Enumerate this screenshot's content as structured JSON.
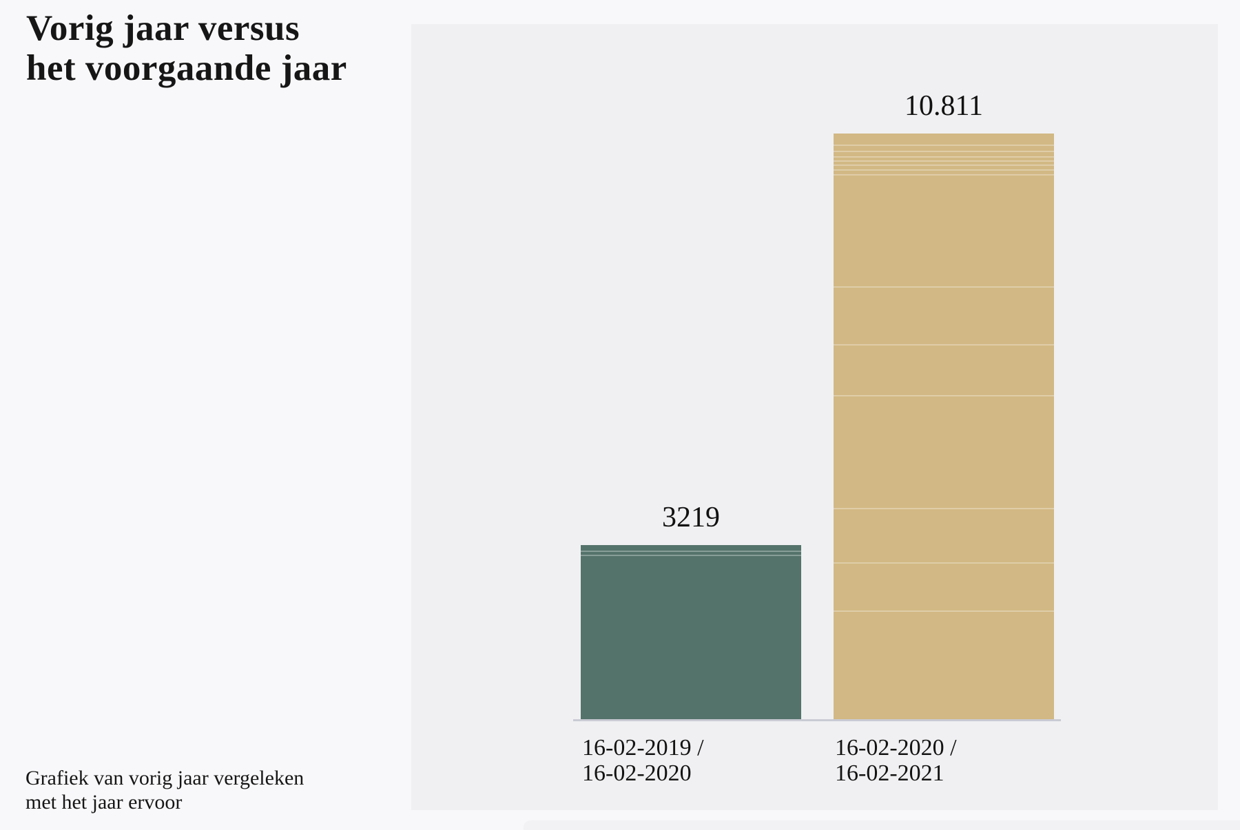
{
  "page": {
    "background_color": "#f8f8fa",
    "title_lines": [
      "Vorig jaar versus",
      "het voorgaande jaar"
    ],
    "caption_lines": [
      "Grafiek van vorig jaar vergeleken",
      "met het jaar ervoor"
    ],
    "text_color": "#151515"
  },
  "chart_data": {
    "type": "bar",
    "title": "Vorig jaar versus het voorgaande jaar",
    "subtitle": "Grafiek van vorig jaar vergeleken met het jaar ervoor",
    "categories": [
      "16-02-2019 / 16-02-2020",
      "16-02-2020 / 16-02-2021"
    ],
    "values": [
      3219,
      10811
    ],
    "xlabel": "",
    "ylabel": "",
    "ylim": [
      0,
      11600
    ],
    "grid": false,
    "legend_position": "none",
    "panel_background": "#f0f0f2",
    "axis_line_color": "#c9cbd4",
    "bars": [
      {
        "category_lines": [
          "16-02-2019 /",
          "16-02-2020"
        ],
        "value": 3219,
        "display_value": "3219",
        "color": "#54736b",
        "separator_fractions": [
          0.032,
          0.056
        ]
      },
      {
        "category_lines": [
          "16-02-2020 /",
          "16-02-2021"
        ],
        "value": 10811,
        "display_value": "10.811",
        "color": "#d2b884",
        "separator_fractions": [
          0.019,
          0.029,
          0.039,
          0.046,
          0.053,
          0.061,
          0.069,
          0.261,
          0.36,
          0.447,
          0.639,
          0.732,
          0.814
        ]
      }
    ]
  }
}
